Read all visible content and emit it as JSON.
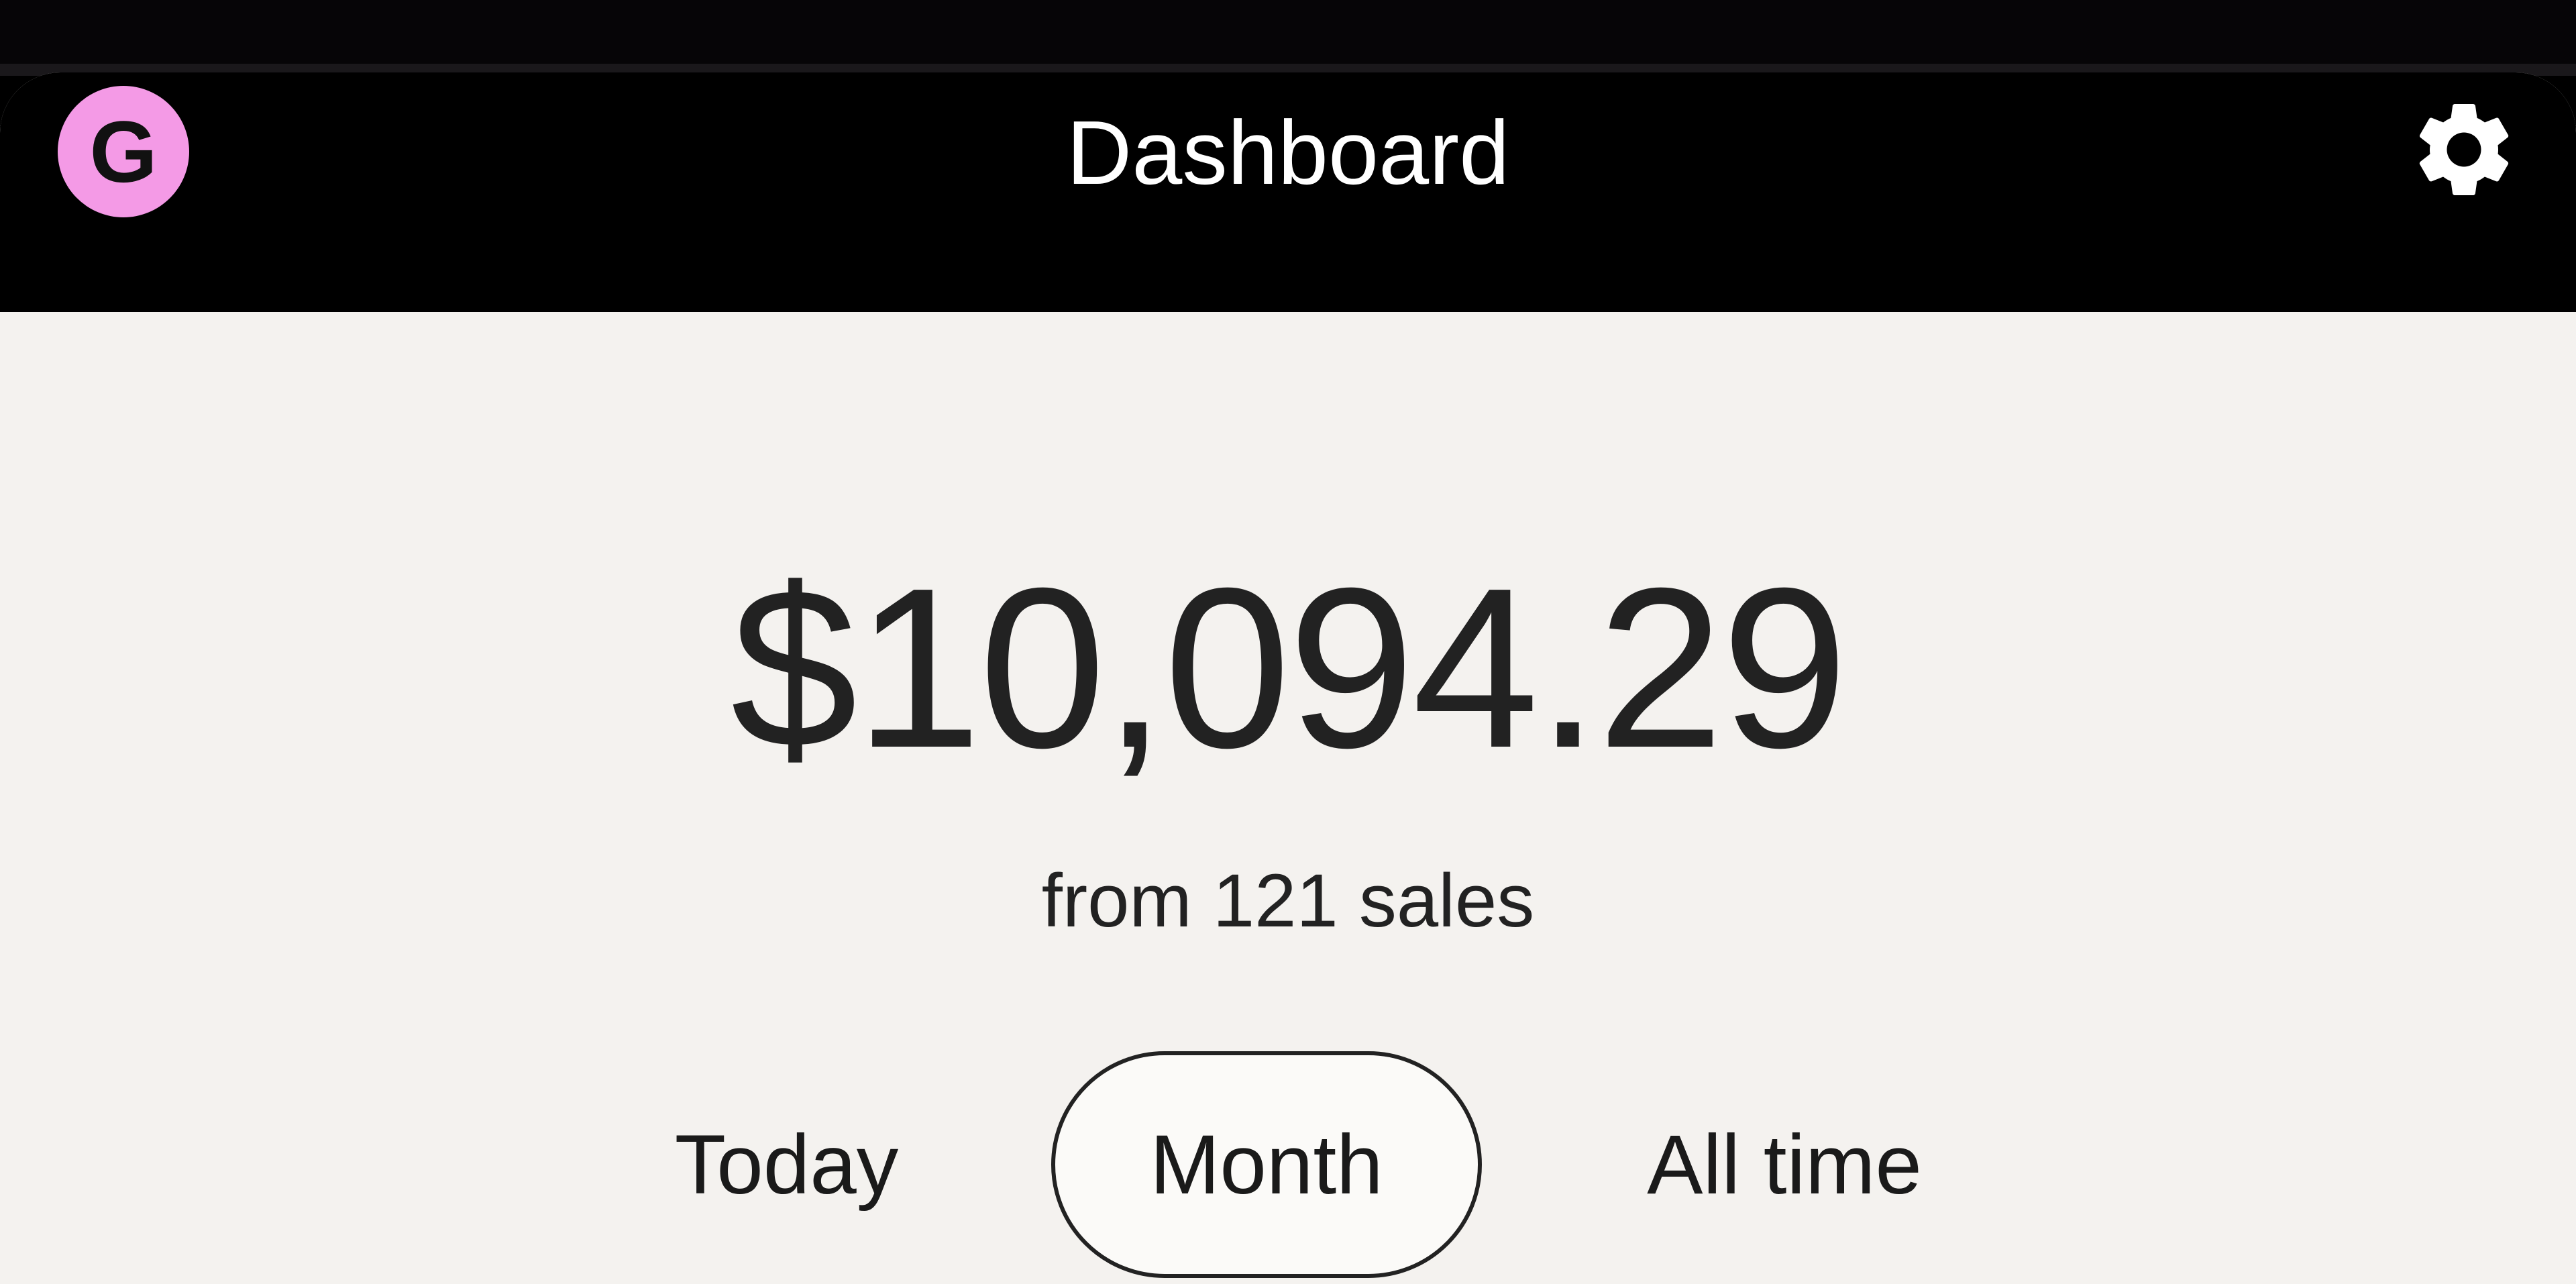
{
  "header": {
    "avatar_letter": "G",
    "avatar_color": "#f49ae6",
    "title": "Dashboard",
    "settings_icon": "gear-icon"
  },
  "summary": {
    "amount": "$10,094.29",
    "subtitle": "from 121 sales"
  },
  "period_tabs": {
    "items": [
      {
        "label": "Today",
        "selected": false
      },
      {
        "label": "Month",
        "selected": true
      },
      {
        "label": "All time",
        "selected": false
      }
    ]
  }
}
